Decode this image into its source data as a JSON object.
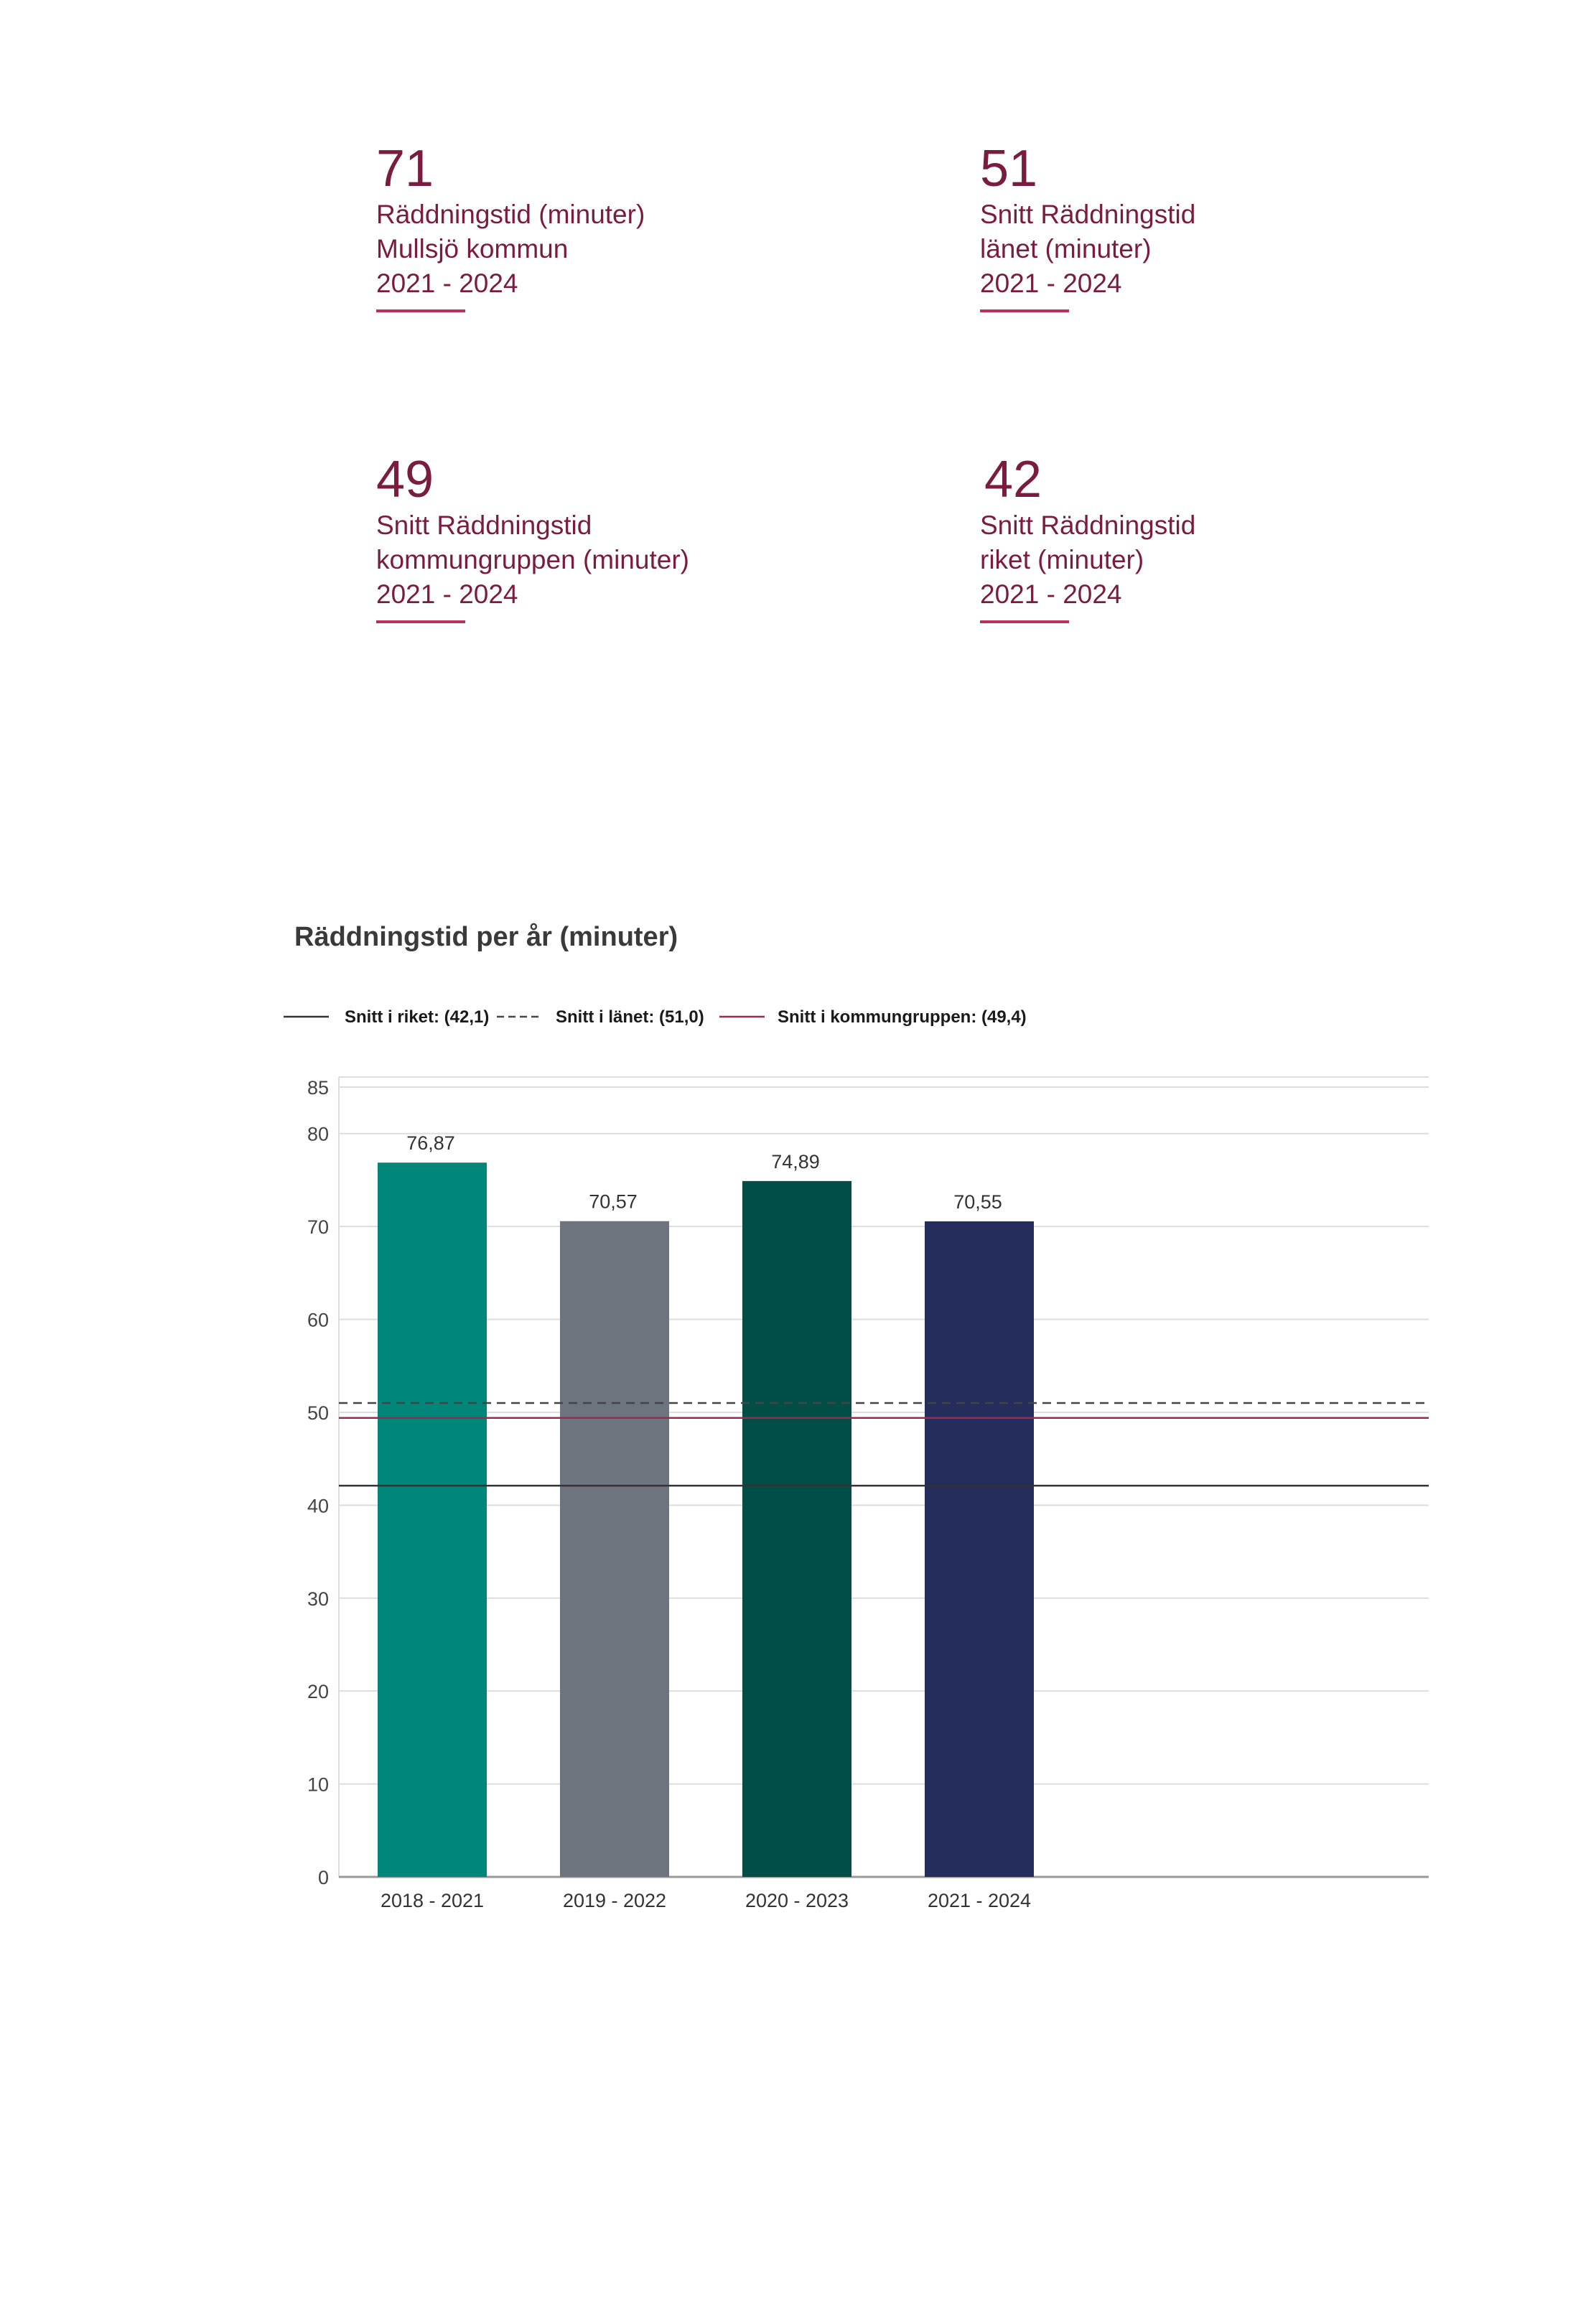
{
  "kpis": [
    {
      "value": "71",
      "lines": [
        "Räddningstid (minuter)",
        "Mullsjö kommun",
        "2021 - 2024"
      ]
    },
    {
      "value": "51",
      "lines": [
        "Snitt Räddningstid",
        "länet (minuter)",
        "2021 - 2024"
      ]
    },
    {
      "value": "49",
      "lines": [
        "Snitt Räddningstid",
        "kommungruppen (minuter)",
        "2021 - 2024"
      ]
    },
    {
      "value": "42",
      "lines": [
        "Snitt Räddningstid",
        "riket (minuter)",
        "2021 - 2024"
      ]
    }
  ],
  "colors": {
    "accent": "#7a1c3f",
    "rule": "#b8325b",
    "grid": "#dddddd",
    "axis": "#999999"
  },
  "chart_data": {
    "type": "bar",
    "title": "Räddningstid per år (minuter)",
    "xlabel": "",
    "ylabel": "",
    "categories": [
      "2018 - 2021",
      "2019 - 2022",
      "2020 - 2023",
      "2021 - 2024"
    ],
    "values": [
      76.87,
      70.57,
      74.89,
      70.55
    ],
    "value_labels": [
      "76,87",
      "70,57",
      "74,89",
      "70,55"
    ],
    "bar_colors": [
      "#00877a",
      "#6e747d",
      "#004e46",
      "#252d5d"
    ],
    "ylim": [
      0,
      85
    ],
    "yticks": [
      0,
      10,
      20,
      30,
      40,
      50,
      60,
      70,
      80,
      85
    ],
    "grid": true,
    "legend_position": "top",
    "reference_lines": [
      {
        "label": "Snitt i riket: (42,1)",
        "value": 42.1,
        "color": "#333333",
        "style": "solid"
      },
      {
        "label": "Snitt i länet: (51,0)",
        "value": 51.0,
        "color": "#444444",
        "style": "dashed"
      },
      {
        "label": "Snitt i kommungruppen: (49,4)",
        "value": 49.4,
        "color": "#9b2a4d",
        "style": "solid"
      }
    ]
  }
}
